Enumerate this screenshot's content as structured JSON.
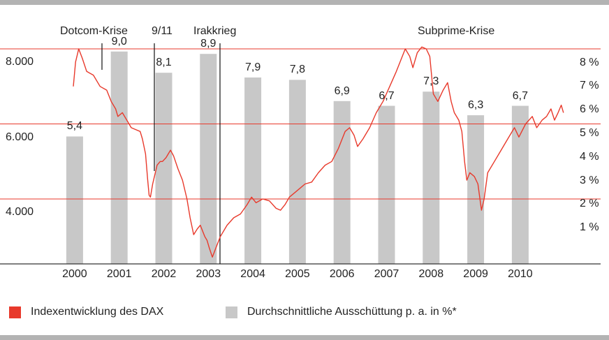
{
  "chart_data": {
    "type": "bar+line",
    "events": [
      "Dotcom-Krise",
      "9/11",
      "Irakkrieg",
      "Subprime-Krise"
    ],
    "left_axis": {
      "ticks": [
        "4.000",
        "6.000",
        "8.000"
      ],
      "tick_values": [
        4000,
        6000,
        8000
      ],
      "range": [
        2200,
        8400
      ]
    },
    "right_axis": {
      "ticks": [
        "1 %",
        "2 %",
        "3 %",
        "4 %",
        "5 %",
        "6 %",
        "7 %",
        "8 %"
      ],
      "tick_values": [
        1,
        2,
        3,
        4,
        5,
        6,
        7,
        8
      ],
      "range": [
        0,
        9.2
      ]
    },
    "gridlines_left": [
      4000,
      6000,
      8000
    ],
    "categories": [
      "2000",
      "2001",
      "2002",
      "2003",
      "2004",
      "2005",
      "2006",
      "2007",
      "2008",
      "2009",
      "2010"
    ],
    "bar_series": {
      "name": "Durchschnittliche Ausschüttung p. a. in %",
      "values": [
        5.4,
        9.0,
        8.1,
        8.9,
        7.9,
        7.8,
        6.9,
        6.7,
        7.3,
        6.3,
        6.7
      ],
      "labels": [
        "5,4",
        "9,0",
        "8,1",
        "8,9",
        "7,9",
        "7,8",
        "6,9",
        "6,7",
        "7,3",
        "6,3",
        "6,7"
      ],
      "color": "#c8c8c8"
    },
    "line_series": {
      "name": "Indexentwicklung des DAX",
      "color": "#e8392b",
      "points": [
        [
          2000.0,
          7000
        ],
        [
          2000.05,
          7650
        ],
        [
          2000.12,
          8000
        ],
        [
          2000.2,
          7750
        ],
        [
          2000.3,
          7400
        ],
        [
          2000.45,
          7300
        ],
        [
          2000.6,
          7000
        ],
        [
          2000.75,
          6900
        ],
        [
          2000.85,
          6600
        ],
        [
          2000.95,
          6400
        ],
        [
          2001.0,
          6200
        ],
        [
          2001.1,
          6300
        ],
        [
          2001.2,
          6100
        ],
        [
          2001.3,
          5900
        ],
        [
          2001.4,
          5850
        ],
        [
          2001.5,
          5800
        ],
        [
          2001.55,
          5600
        ],
        [
          2001.62,
          5200
        ],
        [
          2001.67,
          4500
        ],
        [
          2001.7,
          4100
        ],
        [
          2001.73,
          4050
        ],
        [
          2001.78,
          4400
        ],
        [
          2001.88,
          4900
        ],
        [
          2001.95,
          5000
        ],
        [
          2002.0,
          5000
        ],
        [
          2002.08,
          5100
        ],
        [
          2002.18,
          5300
        ],
        [
          2002.25,
          5150
        ],
        [
          2002.35,
          4800
        ],
        [
          2002.45,
          4500
        ],
        [
          2002.55,
          4000
        ],
        [
          2002.62,
          3500
        ],
        [
          2002.7,
          3050
        ],
        [
          2002.78,
          3200
        ],
        [
          2002.85,
          3300
        ],
        [
          2002.95,
          3000
        ],
        [
          2003.0,
          2900
        ],
        [
          2003.05,
          2700
        ],
        [
          2003.12,
          2450
        ],
        [
          2003.2,
          2700
        ],
        [
          2003.3,
          3000
        ],
        [
          2003.45,
          3300
        ],
        [
          2003.6,
          3500
        ],
        [
          2003.75,
          3600
        ],
        [
          2003.9,
          3850
        ],
        [
          2004.0,
          4050
        ],
        [
          2004.1,
          3900
        ],
        [
          2004.25,
          4000
        ],
        [
          2004.4,
          3950
        ],
        [
          2004.55,
          3750
        ],
        [
          2004.65,
          3700
        ],
        [
          2004.75,
          3850
        ],
        [
          2004.85,
          4050
        ],
        [
          2005.0,
          4200
        ],
        [
          2005.2,
          4400
        ],
        [
          2005.35,
          4450
        ],
        [
          2005.5,
          4700
        ],
        [
          2005.65,
          4900
        ],
        [
          2005.8,
          5000
        ],
        [
          2005.95,
          5350
        ],
        [
          2006.1,
          5800
        ],
        [
          2006.2,
          5900
        ],
        [
          2006.3,
          5700
        ],
        [
          2006.38,
          5400
        ],
        [
          2006.5,
          5600
        ],
        [
          2006.65,
          5900
        ],
        [
          2006.8,
          6300
        ],
        [
          2006.95,
          6600
        ],
        [
          2007.1,
          7000
        ],
        [
          2007.25,
          7400
        ],
        [
          2007.35,
          7700
        ],
        [
          2007.45,
          8000
        ],
        [
          2007.55,
          7800
        ],
        [
          2007.62,
          7500
        ],
        [
          2007.72,
          7900
        ],
        [
          2007.82,
          8050
        ],
        [
          2007.92,
          8000
        ],
        [
          2008.0,
          7800
        ],
        [
          2008.08,
          6800
        ],
        [
          2008.18,
          6600
        ],
        [
          2008.3,
          6900
        ],
        [
          2008.4,
          7100
        ],
        [
          2008.48,
          6600
        ],
        [
          2008.55,
          6300
        ],
        [
          2008.65,
          6100
        ],
        [
          2008.72,
          5800
        ],
        [
          2008.78,
          5000
        ],
        [
          2008.83,
          4500
        ],
        [
          2008.9,
          4700
        ],
        [
          2009.0,
          4600
        ],
        [
          2009.08,
          4400
        ],
        [
          2009.16,
          3700
        ],
        [
          2009.22,
          4000
        ],
        [
          2009.3,
          4700
        ],
        [
          2009.45,
          5000
        ],
        [
          2009.6,
          5300
        ],
        [
          2009.75,
          5600
        ],
        [
          2009.9,
          5900
        ],
        [
          2010.0,
          5650
        ],
        [
          2010.15,
          6000
        ],
        [
          2010.3,
          6200
        ],
        [
          2010.4,
          5900
        ],
        [
          2010.52,
          6100
        ],
        [
          2010.62,
          6200
        ],
        [
          2010.72,
          6400
        ],
        [
          2010.8,
          6100
        ],
        [
          2010.88,
          6300
        ],
        [
          2010.95,
          6500
        ],
        [
          2011.0,
          6300
        ]
      ]
    },
    "legend": [
      "Indexentwicklung des DAX",
      "Durchschnittliche Ausschüttung p. a. in %*"
    ],
    "grid": "horizontal red lines at 4.000, 6.000, 8.000",
    "legend_position": "bottom"
  }
}
